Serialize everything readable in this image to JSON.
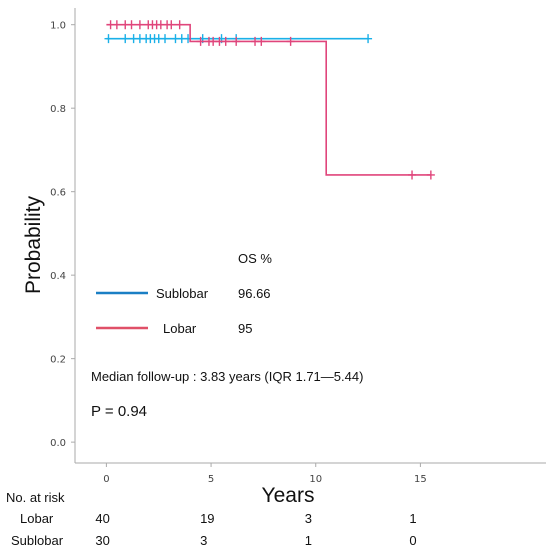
{
  "chart_data": {
    "type": "line",
    "title": "",
    "xlabel": "Years",
    "ylabel": "Probability",
    "xlim": [
      -1.5,
      21
    ],
    "ylim": [
      -0.05,
      1.04
    ],
    "x_ticks": [
      "0",
      "5",
      "10",
      "15"
    ],
    "y_ticks": [
      "0.0",
      "0.2",
      "0.4",
      "0.6",
      "0.8",
      "1.0"
    ],
    "grid": false,
    "series": [
      {
        "name": "Sublobar",
        "color": "#1ab0e8",
        "steps": [
          {
            "x": 0,
            "y": 0.9666
          },
          {
            "x": 12.5,
            "y": 0.9666
          }
        ],
        "censored": [
          {
            "x": 0.1,
            "y": 0.9666
          },
          {
            "x": 0.9,
            "y": 0.9666
          },
          {
            "x": 1.3,
            "y": 0.9666
          },
          {
            "x": 1.6,
            "y": 0.9666
          },
          {
            "x": 1.9,
            "y": 0.9666
          },
          {
            "x": 2.1,
            "y": 0.9666
          },
          {
            "x": 2.3,
            "y": 0.9666
          },
          {
            "x": 2.5,
            "y": 0.9666
          },
          {
            "x": 2.8,
            "y": 0.9666
          },
          {
            "x": 3.3,
            "y": 0.9666
          },
          {
            "x": 3.6,
            "y": 0.9666
          },
          {
            "x": 3.9,
            "y": 0.9666
          },
          {
            "x": 4.6,
            "y": 0.9666
          },
          {
            "x": 5.5,
            "y": 0.9666
          },
          {
            "x": 6.2,
            "y": 0.9666
          },
          {
            "x": 12.5,
            "y": 0.9666
          }
        ]
      },
      {
        "name": "Lobar",
        "color": "#e0457b",
        "steps": [
          {
            "x": 0,
            "y": 1.0
          },
          {
            "x": 4.0,
            "y": 0.96
          },
          {
            "x": 10.5,
            "y": 0.64
          },
          {
            "x": 15.5,
            "y": 0.64
          }
        ],
        "censored": [
          {
            "x": 0.2,
            "y": 1.0
          },
          {
            "x": 0.5,
            "y": 1.0
          },
          {
            "x": 0.9,
            "y": 1.0
          },
          {
            "x": 1.2,
            "y": 1.0
          },
          {
            "x": 1.6,
            "y": 1.0
          },
          {
            "x": 2.0,
            "y": 1.0
          },
          {
            "x": 2.2,
            "y": 1.0
          },
          {
            "x": 2.4,
            "y": 1.0
          },
          {
            "x": 2.6,
            "y": 1.0
          },
          {
            "x": 2.9,
            "y": 1.0
          },
          {
            "x": 3.1,
            "y": 1.0
          },
          {
            "x": 3.5,
            "y": 1.0
          },
          {
            "x": 4.5,
            "y": 0.96
          },
          {
            "x": 4.9,
            "y": 0.96
          },
          {
            "x": 5.1,
            "y": 0.96
          },
          {
            "x": 5.4,
            "y": 0.96
          },
          {
            "x": 5.7,
            "y": 0.96
          },
          {
            "x": 6.2,
            "y": 0.96
          },
          {
            "x": 7.1,
            "y": 0.96
          },
          {
            "x": 7.4,
            "y": 0.96
          },
          {
            "x": 8.8,
            "y": 0.96
          },
          {
            "x": 14.6,
            "y": 0.64
          },
          {
            "x": 15.5,
            "y": 0.64
          }
        ]
      }
    ],
    "legend": {
      "header": "OS %",
      "items": [
        {
          "label": "Sublobar",
          "value": "96.66",
          "color": "#1a7fc4"
        },
        {
          "label": "Lobar",
          "value": "95",
          "color": "#e05068"
        }
      ]
    },
    "annotations": {
      "median": "Median follow-up : 3.83 years (IQR 1.71—5.44)",
      "pvalue": "P = 0.94"
    },
    "risk_table": {
      "header": "No. at risk",
      "rows": [
        {
          "label": "Lobar",
          "values": [
            "40",
            "19",
            "3",
            "1"
          ]
        },
        {
          "label": "Sublobar",
          "values": [
            "30",
            "3",
            "1",
            "0"
          ]
        }
      ]
    }
  }
}
